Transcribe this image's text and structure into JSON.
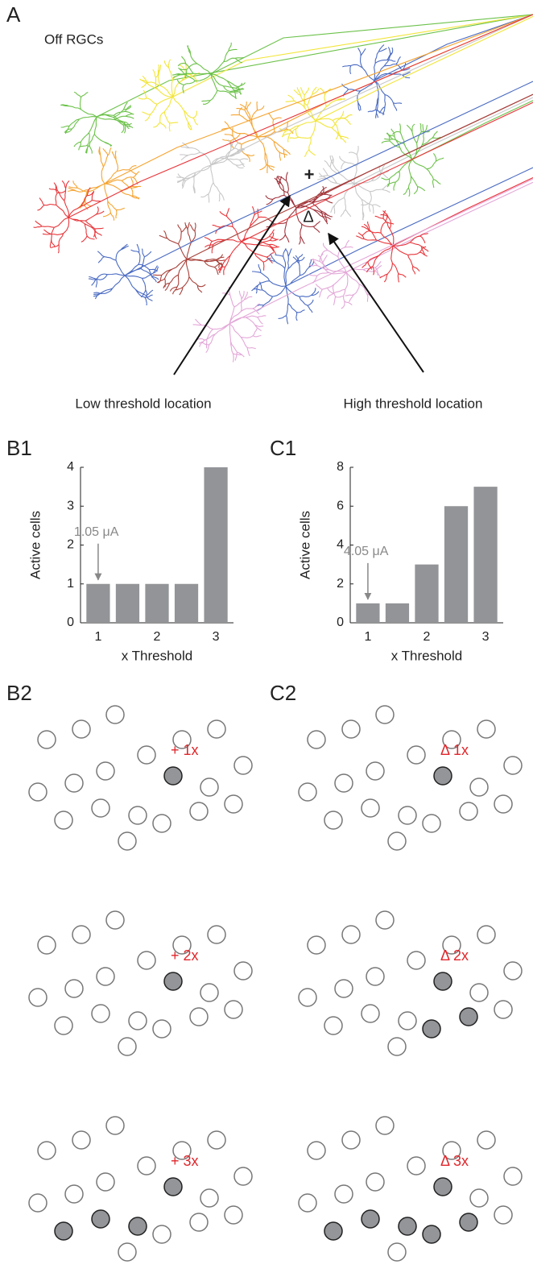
{
  "panels": {
    "A": {
      "label": "A",
      "title": "Off RGCs",
      "plus": "+",
      "delta": "Δ",
      "low": "Low threshold location",
      "high": "High threshold location"
    },
    "B1": {
      "label": "B1"
    },
    "C1": {
      "label": "C1"
    },
    "B2": {
      "label": "B2",
      "tags": [
        "+ 1x",
        "+ 2x",
        "+ 3x"
      ]
    },
    "C2": {
      "label": "C2",
      "tags": [
        "Δ 1x",
        "Δ 2x",
        "Δ 3x"
      ]
    }
  },
  "chart_data": [
    {
      "type": "bar",
      "x": [
        1,
        1.5,
        2,
        2.5,
        3
      ],
      "values": [
        1,
        1,
        1,
        1,
        4
      ],
      "color": "#929497",
      "xlim": [
        0.7,
        3.3
      ],
      "xticks": [
        1,
        2,
        3
      ],
      "ylim": [
        0,
        4
      ],
      "yticks": [
        0,
        1,
        2,
        3,
        4
      ],
      "xlabel": "x Threshold",
      "ylabel": "Active cells",
      "annotation": "1.05 μA"
    },
    {
      "type": "bar",
      "x": [
        1,
        1.5,
        2,
        2.5,
        3
      ],
      "values": [
        1,
        1,
        3,
        6,
        7
      ],
      "color": "#929497",
      "xlim": [
        0.7,
        3.3
      ],
      "xticks": [
        1,
        2,
        3
      ],
      "ylim": [
        0,
        8
      ],
      "yticks": [
        0,
        2,
        4,
        6,
        8
      ],
      "xlabel": "x Threshold",
      "ylabel": "Active cells",
      "annotation": "4.05 μA"
    }
  ]
}
